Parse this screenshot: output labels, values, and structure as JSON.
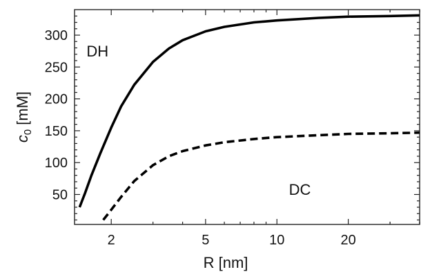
{
  "chart_data": {
    "type": "line",
    "xlabel": "R [nm]",
    "ylabel_main": "c",
    "ylabel_sub": "0",
    "ylabel_unit": " [mM]",
    "x_scale": "log",
    "xlim": [
      1.4,
      40
    ],
    "ylim": [
      3,
      340
    ],
    "grid": false,
    "x_ticks": [
      2,
      5,
      10,
      20
    ],
    "x_tick_labels": [
      "2",
      "5",
      "10",
      "20"
    ],
    "y_ticks": [
      50,
      100,
      150,
      200,
      250,
      300
    ],
    "y_tick_labels": [
      "50",
      "100",
      "150",
      "200",
      "250",
      "300"
    ],
    "series": [
      {
        "name": "DH",
        "style": "solid",
        "points": [
          [
            1.47,
            30
          ],
          [
            1.55,
            52
          ],
          [
            1.65,
            80
          ],
          [
            1.8,
            115
          ],
          [
            2.0,
            155
          ],
          [
            2.2,
            188
          ],
          [
            2.5,
            222
          ],
          [
            3.0,
            258
          ],
          [
            3.5,
            279
          ],
          [
            4.0,
            292
          ],
          [
            5.0,
            306
          ],
          [
            6.0,
            313
          ],
          [
            8.0,
            320
          ],
          [
            10.0,
            323
          ],
          [
            15.0,
            327
          ],
          [
            20.0,
            329
          ],
          [
            30.0,
            330
          ],
          [
            40.0,
            331
          ]
        ]
      },
      {
        "name": "DC",
        "style": "dashed",
        "points": [
          [
            1.85,
            10
          ],
          [
            2.0,
            26
          ],
          [
            2.2,
            46
          ],
          [
            2.5,
            71
          ],
          [
            3.0,
            96
          ],
          [
            3.5,
            110
          ],
          [
            4.0,
            118
          ],
          [
            5.0,
            127
          ],
          [
            6.0,
            132
          ],
          [
            8.0,
            137
          ],
          [
            10.0,
            140
          ],
          [
            15.0,
            143
          ],
          [
            20.0,
            145
          ],
          [
            30.0,
            146
          ],
          [
            40.0,
            147
          ]
        ]
      }
    ],
    "annotations": [
      {
        "text": "DH",
        "x": 1.75,
        "y": 275
      },
      {
        "text": "DC",
        "x": 12.5,
        "y": 58
      }
    ],
    "line_color": "#000000"
  }
}
